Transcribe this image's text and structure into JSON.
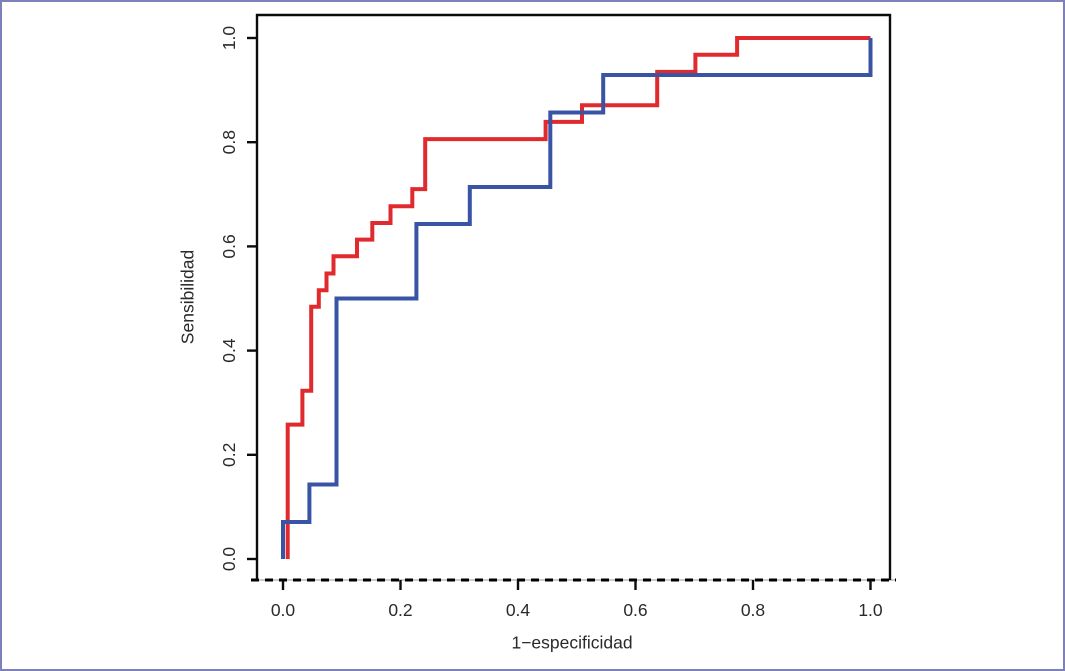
{
  "figure": {
    "border_color": "#7e81b7",
    "background_color": "#ffffff"
  },
  "chart_data": {
    "type": "line",
    "subtype": "roc-step-curves",
    "title": "",
    "xlabel": "1−especificidad",
    "ylabel": "Sensibilidad",
    "xlim": [
      0,
      1
    ],
    "ylim": [
      0,
      1
    ],
    "grid": false,
    "legend": "none",
    "box": true,
    "bottom_reference_line": {
      "style": "dashed",
      "color": "#000000",
      "underlay_color": "#cccccc",
      "position": "below x-axis, horizontal, full plot width"
    },
    "x_tick_values": [
      0,
      0.2,
      0.4,
      0.6,
      0.8,
      1.0
    ],
    "x_tick_labels": [
      "0.0",
      "0.2",
      "0.4",
      "0.6",
      "0.8",
      "1.0"
    ],
    "y_tick_values": [
      0,
      0.2,
      0.4,
      0.6,
      0.8,
      1.0
    ],
    "y_tick_labels": [
      "0.0",
      "0.2",
      "0.4",
      "0.6",
      "0.8",
      "1.0"
    ],
    "y_tick_labels_rotated": true,
    "series": [
      {
        "name": "roc-curve-red",
        "color": "#e02a2e",
        "line_width": 4,
        "points": [
          [
            0.008,
            0.0
          ],
          [
            0.008,
            0.258
          ],
          [
            0.033,
            0.258
          ],
          [
            0.033,
            0.323
          ],
          [
            0.048,
            0.323
          ],
          [
            0.048,
            0.484
          ],
          [
            0.061,
            0.484
          ],
          [
            0.061,
            0.516
          ],
          [
            0.074,
            0.516
          ],
          [
            0.074,
            0.548
          ],
          [
            0.086,
            0.548
          ],
          [
            0.086,
            0.581
          ],
          [
            0.126,
            0.581
          ],
          [
            0.126,
            0.613
          ],
          [
            0.152,
            0.613
          ],
          [
            0.152,
            0.645
          ],
          [
            0.183,
            0.645
          ],
          [
            0.183,
            0.677
          ],
          [
            0.22,
            0.677
          ],
          [
            0.22,
            0.71
          ],
          [
            0.242,
            0.71
          ],
          [
            0.242,
            0.806
          ],
          [
            0.447,
            0.806
          ],
          [
            0.447,
            0.839
          ],
          [
            0.509,
            0.839
          ],
          [
            0.509,
            0.871
          ],
          [
            0.637,
            0.871
          ],
          [
            0.637,
            0.935
          ],
          [
            0.702,
            0.935
          ],
          [
            0.702,
            0.968
          ],
          [
            0.773,
            0.968
          ],
          [
            0.773,
            1.0
          ],
          [
            1.0,
            1.0
          ]
        ]
      },
      {
        "name": "roc-curve-blue",
        "color": "#3a54a5",
        "line_width": 4,
        "points": [
          [
            0.0,
            0.0
          ],
          [
            0.0,
            0.071
          ],
          [
            0.045,
            0.071
          ],
          [
            0.045,
            0.143
          ],
          [
            0.091,
            0.143
          ],
          [
            0.091,
            0.5
          ],
          [
            0.227,
            0.5
          ],
          [
            0.227,
            0.643
          ],
          [
            0.318,
            0.643
          ],
          [
            0.318,
            0.714
          ],
          [
            0.455,
            0.714
          ],
          [
            0.455,
            0.857
          ],
          [
            0.545,
            0.857
          ],
          [
            0.545,
            0.929
          ],
          [
            1.0,
            0.929
          ],
          [
            1.0,
            1.0
          ]
        ]
      }
    ]
  }
}
